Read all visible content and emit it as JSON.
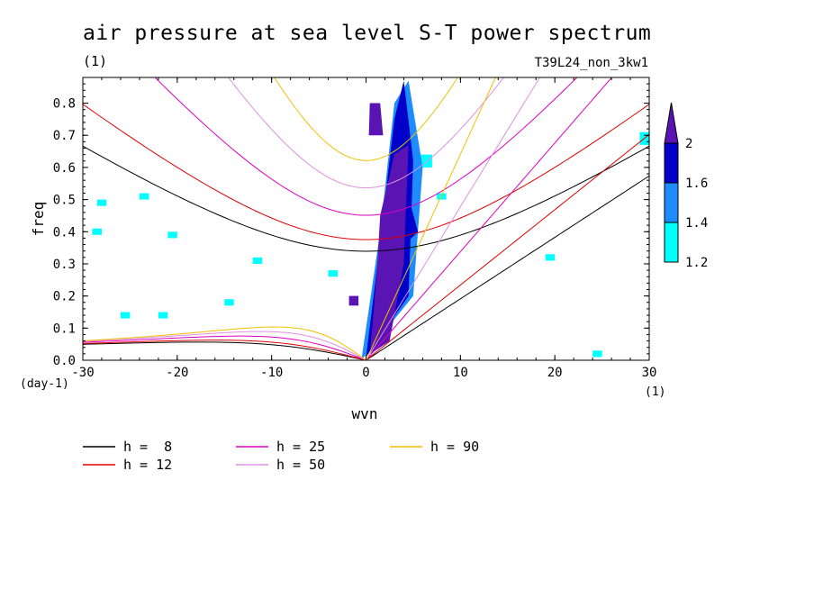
{
  "title": "air pressure at sea level S-T power spectrum",
  "subtitle_left": "(1)",
  "subtitle_right": "T39L24_non_3kw1",
  "chart_data": {
    "type": "heatmap",
    "title": "air pressure at sea level S-T power spectrum",
    "xlabel": "wvn",
    "ylabel": "freq",
    "x_unit_label": "(1)",
    "y_unit_label": "(day-1)",
    "xlim": [
      -30,
      30
    ],
    "ylim": [
      0,
      0.88
    ],
    "x_ticks": [
      -30,
      -20,
      -10,
      0,
      10,
      20,
      30
    ],
    "x_tick_labels": [
      "-30",
      "-20",
      "-10",
      "0",
      "10",
      "20",
      "30"
    ],
    "y_ticks": [
      0,
      0.1,
      0.2,
      0.3,
      0.4,
      0.5,
      0.6,
      0.7,
      0.8
    ],
    "y_tick_labels": [
      "0.0",
      "0.1",
      "0.2",
      "0.3",
      "0.4",
      "0.5",
      "0.6",
      "0.7",
      "0.8"
    ],
    "colorbar": {
      "levels": [
        1.2,
        1.4,
        1.6,
        2
      ],
      "level_labels": [
        "1.2",
        "1.4",
        "1.6",
        "2"
      ],
      "colors": [
        "#00ffff",
        "#1e8cff",
        "#0000c8",
        "#5a14b4"
      ]
    },
    "contour_regions": [
      {
        "level": 2,
        "x": [
          0.5,
          2.5,
          4,
          4.5,
          3,
          1.5,
          1.2,
          0.8,
          0.5
        ],
        "y": [
          0.02,
          0.06,
          0.3,
          0.67,
          0.64,
          0.45,
          0.3,
          0.15,
          0.05
        ]
      },
      {
        "level": 2,
        "x": [
          0.3,
          1.8,
          1.5,
          0.4
        ],
        "y": [
          0.7,
          0.7,
          0.8,
          0.8
        ]
      },
      {
        "level": 2,
        "x": [
          -1.8,
          -0.8,
          -0.8,
          -1.8
        ],
        "y": [
          0.17,
          0.17,
          0.2,
          0.2
        ]
      },
      {
        "level": 1.6,
        "x": [
          0,
          4.5,
          5,
          4,
          3,
          2,
          0.8
        ],
        "y": [
          0.01,
          0.2,
          0.62,
          0.87,
          0.75,
          0.5,
          0.2
        ]
      },
      {
        "level": 1.6,
        "x": [
          2,
          5.5,
          4,
          3
        ],
        "y": [
          0.3,
          0.4,
          0.56,
          0.5
        ]
      },
      {
        "level": 1.4,
        "x": [
          -0.5,
          5,
          6,
          4.5,
          3,
          1.5
        ],
        "y": [
          0,
          0.2,
          0.6,
          0.87,
          0.8,
          0.4
        ]
      },
      {
        "level": 1.2,
        "x": [
          4,
          7,
          7,
          4
        ],
        "y": [
          0.6,
          0.6,
          0.64,
          0.64
        ]
      },
      {
        "level": 1.2,
        "x": [
          7.5,
          8.5,
          8.5,
          7.5
        ],
        "y": [
          0.5,
          0.5,
          0.52,
          0.52
        ]
      },
      {
        "level": 1.2,
        "x": [
          -28.5,
          -27.5,
          -27.5,
          -28.5
        ],
        "y": [
          0.48,
          0.48,
          0.5,
          0.5
        ]
      },
      {
        "level": 1.2,
        "x": [
          -24,
          -23,
          -23,
          -24
        ],
        "y": [
          0.5,
          0.5,
          0.52,
          0.52
        ]
      },
      {
        "level": 1.2,
        "x": [
          -21,
          -20,
          -20,
          -21
        ],
        "y": [
          0.38,
          0.38,
          0.4,
          0.4
        ]
      },
      {
        "level": 1.2,
        "x": [
          -29,
          -28,
          -28,
          -29
        ],
        "y": [
          0.39,
          0.39,
          0.41,
          0.41
        ]
      },
      {
        "level": 1.2,
        "x": [
          -26,
          -25,
          -25,
          -26
        ],
        "y": [
          0.13,
          0.13,
          0.15,
          0.15
        ]
      },
      {
        "level": 1.2,
        "x": [
          -22,
          -21,
          -21,
          -22
        ],
        "y": [
          0.13,
          0.13,
          0.15,
          0.15
        ]
      },
      {
        "level": 1.2,
        "x": [
          -15,
          -14,
          -14,
          -15
        ],
        "y": [
          0.17,
          0.17,
          0.19,
          0.19
        ]
      },
      {
        "level": 1.2,
        "x": [
          -12,
          -11,
          -11,
          -12
        ],
        "y": [
          0.3,
          0.3,
          0.32,
          0.32
        ]
      },
      {
        "level": 1.2,
        "x": [
          -4,
          -3,
          -3,
          -4
        ],
        "y": [
          0.26,
          0.26,
          0.28,
          0.28
        ]
      },
      {
        "level": 1.2,
        "x": [
          29,
          30,
          30,
          29
        ],
        "y": [
          0.67,
          0.67,
          0.71,
          0.71
        ]
      },
      {
        "level": 1.2,
        "x": [
          19,
          20,
          20,
          19
        ],
        "y": [
          0.31,
          0.31,
          0.33,
          0.33
        ]
      },
      {
        "level": 1.2,
        "x": [
          24,
          25,
          25,
          24
        ],
        "y": [
          0.01,
          0.01,
          0.03,
          0.03
        ]
      }
    ],
    "series": [
      {
        "name": "h =  8",
        "color": "#000000",
        "equivalent_depth": 8
      },
      {
        "name": "h = 12",
        "color": "#e00000",
        "equivalent_depth": 12
      },
      {
        "name": "h = 25",
        "color": "#e000c0",
        "equivalent_depth": 25
      },
      {
        "name": "h = 50",
        "color": "#e090e0",
        "equivalent_depth": 50
      },
      {
        "name": "h = 90",
        "color": "#f0c000",
        "equivalent_depth": 90
      }
    ],
    "legend_placement": "bottom"
  }
}
